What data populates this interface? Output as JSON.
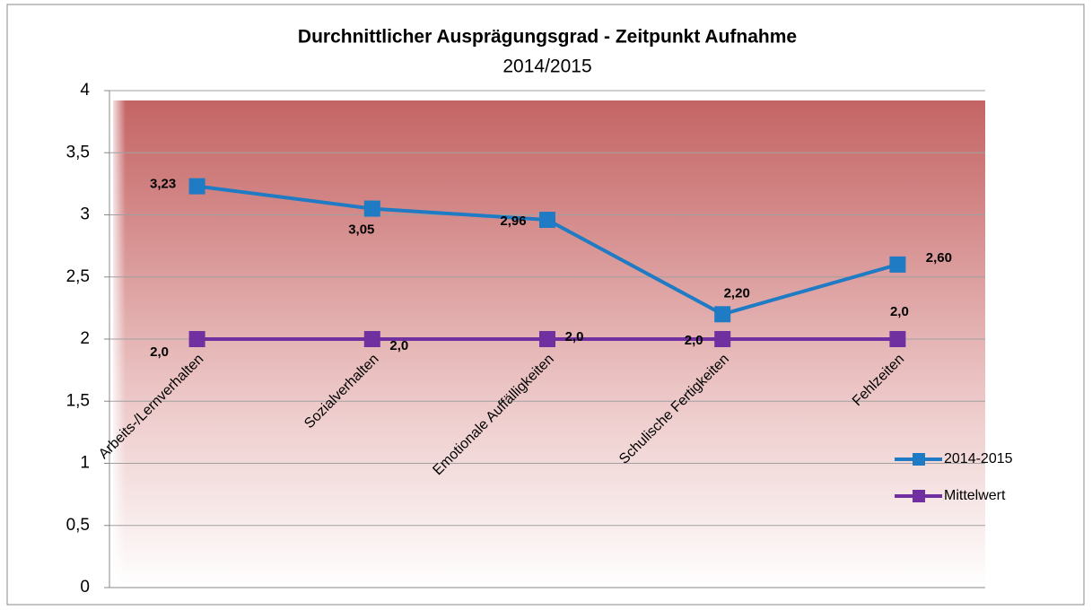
{
  "chart_data": {
    "type": "line",
    "title": "Durchnittlicher Ausprägungsgrad - Zeitpunkt Aufnahme",
    "subtitle": "2014/2015",
    "categories": [
      "Arbeits-/Lernverhalten",
      "Sozialverhalten",
      "Emotionale Auffälligkeiten",
      "Schulische Fertigkeiten",
      "Fehlzeiten"
    ],
    "series": [
      {
        "name": "2014-2015",
        "color": "#1f7bc4",
        "values": [
          3.23,
          3.05,
          2.96,
          2.2,
          2.6
        ],
        "value_labels": [
          "3,23",
          "3,05",
          "2,96",
          "2,20",
          "2,60"
        ]
      },
      {
        "name": "Mittelwert",
        "color": "#7030a0",
        "values": [
          2,
          2,
          2,
          2,
          2
        ],
        "value_labels": [
          "2,0",
          "2,0",
          "2,0",
          "2,0",
          "2,0"
        ]
      }
    ],
    "ylim": [
      0,
      4
    ],
    "yticks": [
      0,
      {
        "value": 0.5,
        "label": "0,5"
      },
      1,
      {
        "value": 1.5,
        "label": "1,5"
      },
      2,
      {
        "value": 2.5,
        "label": "2,5"
      },
      3,
      {
        "value": 3.5,
        "label": "3,5"
      },
      4
    ],
    "grid": true,
    "legend": "right"
  }
}
